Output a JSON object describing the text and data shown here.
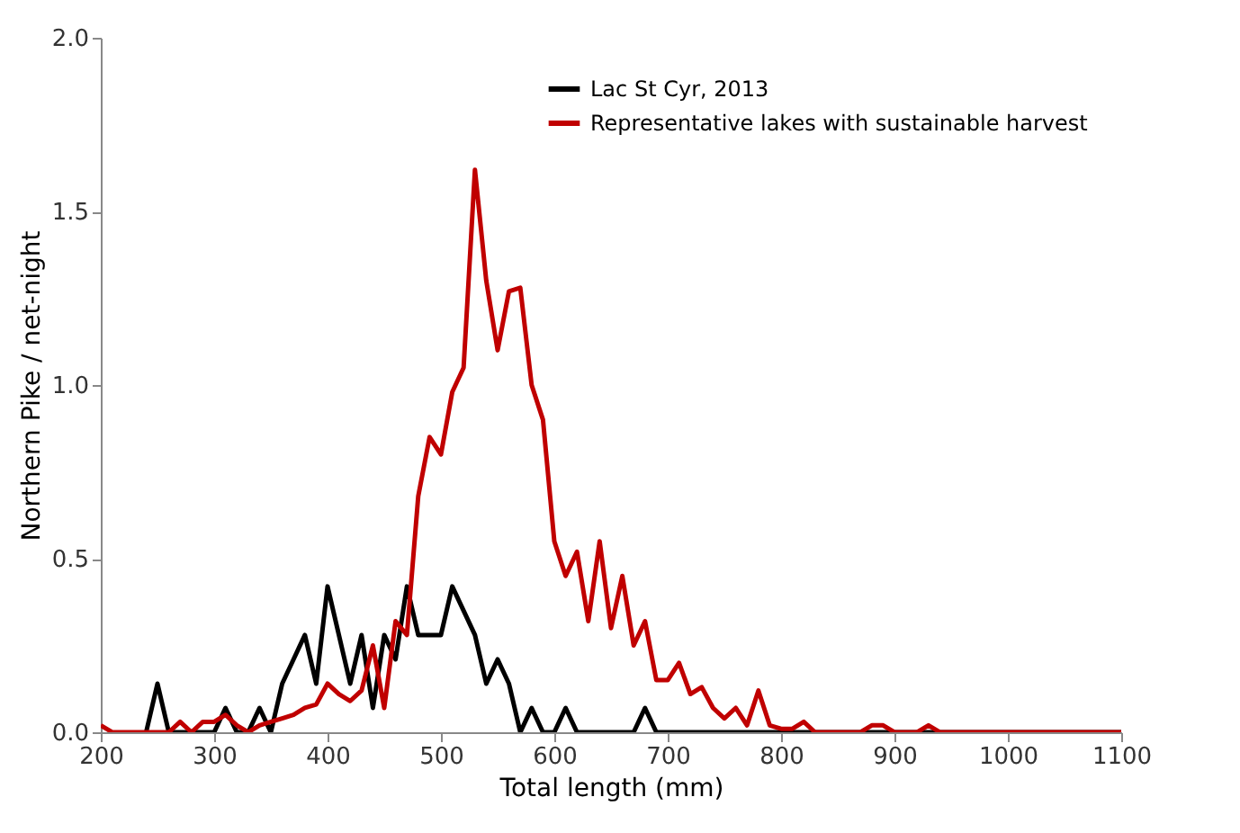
{
  "chart_data": {
    "type": "line",
    "xlabel": "Total length (mm)",
    "ylabel": "Northern Pike / net-night",
    "xlim": [
      200,
      1100
    ],
    "xticks": [
      200,
      300,
      400,
      500,
      600,
      700,
      800,
      900,
      1000,
      1100
    ],
    "ylim": [
      0,
      2
    ],
    "yticks": [
      {
        "value": 0,
        "label": "0.0"
      },
      {
        "value": 0.5,
        "label": "0.5"
      },
      {
        "value": 1,
        "label": "1.0"
      },
      {
        "value": 1.5,
        "label": "1.5"
      },
      {
        "value": 2,
        "label": "2.0"
      }
    ],
    "grid": false,
    "legend": "top right",
    "marker": "none",
    "line_style": "solid",
    "series": [
      {
        "name": "Lac St Cyr, 2013",
        "color": "#000000",
        "x": [
          240,
          250,
          260,
          270,
          280,
          290,
          300,
          310,
          320,
          330,
          340,
          350,
          360,
          370,
          380,
          390,
          400,
          410,
          420,
          430,
          440,
          450,
          460,
          470,
          480,
          490,
          500,
          510,
          520,
          530,
          540,
          550,
          560,
          570,
          580,
          590,
          600,
          610,
          620,
          630,
          640,
          650,
          660,
          670,
          680,
          690,
          700,
          750,
          800,
          900,
          1000,
          1100
        ],
        "values": [
          0,
          0.14,
          0,
          0,
          0,
          0,
          0,
          0.07,
          0,
          0,
          0.07,
          0,
          0.14,
          0.21,
          0.28,
          0.14,
          0.42,
          0.28,
          0.14,
          0.28,
          0.07,
          0.28,
          0.21,
          0.42,
          0.28,
          0.28,
          0.28,
          0.42,
          0.35,
          0.28,
          0.14,
          0.21,
          0.14,
          0,
          0.07,
          0,
          0,
          0.07,
          0,
          0,
          0,
          0,
          0,
          0,
          0.07,
          0,
          0,
          0,
          0,
          0,
          0,
          0
        ]
      },
      {
        "name": "Representative lakes with sustainable harvest",
        "color": "#c00000",
        "x": [
          200,
          210,
          220,
          230,
          240,
          250,
          260,
          270,
          280,
          290,
          300,
          310,
          320,
          330,
          340,
          350,
          360,
          370,
          380,
          390,
          400,
          410,
          420,
          430,
          440,
          450,
          460,
          470,
          480,
          490,
          500,
          510,
          520,
          530,
          540,
          550,
          560,
          570,
          580,
          590,
          600,
          610,
          620,
          630,
          640,
          650,
          660,
          670,
          680,
          690,
          700,
          710,
          720,
          730,
          740,
          750,
          760,
          770,
          780,
          790,
          800,
          810,
          820,
          830,
          840,
          850,
          860,
          870,
          880,
          890,
          900,
          910,
          920,
          930,
          940,
          950,
          1000,
          1050,
          1100
        ],
        "values": [
          0.02,
          0,
          0,
          0,
          0,
          0,
          0,
          0.03,
          0,
          0.03,
          0.03,
          0.05,
          0.02,
          0,
          0.02,
          0.03,
          0.04,
          0.05,
          0.07,
          0.08,
          0.14,
          0.11,
          0.09,
          0.12,
          0.25,
          0.07,
          0.32,
          0.28,
          0.68,
          0.85,
          0.8,
          0.98,
          1.05,
          1.62,
          1.3,
          1.1,
          1.27,
          1.28,
          1.0,
          0.9,
          0.55,
          0.45,
          0.52,
          0.32,
          0.55,
          0.3,
          0.45,
          0.25,
          0.32,
          0.15,
          0.15,
          0.2,
          0.11,
          0.13,
          0.07,
          0.04,
          0.07,
          0.02,
          0.12,
          0.02,
          0.01,
          0.01,
          0.03,
          0,
          0,
          0,
          0,
          0,
          0.02,
          0.02,
          0,
          0,
          0,
          0.02,
          0,
          0,
          0,
          0,
          0
        ]
      }
    ]
  }
}
